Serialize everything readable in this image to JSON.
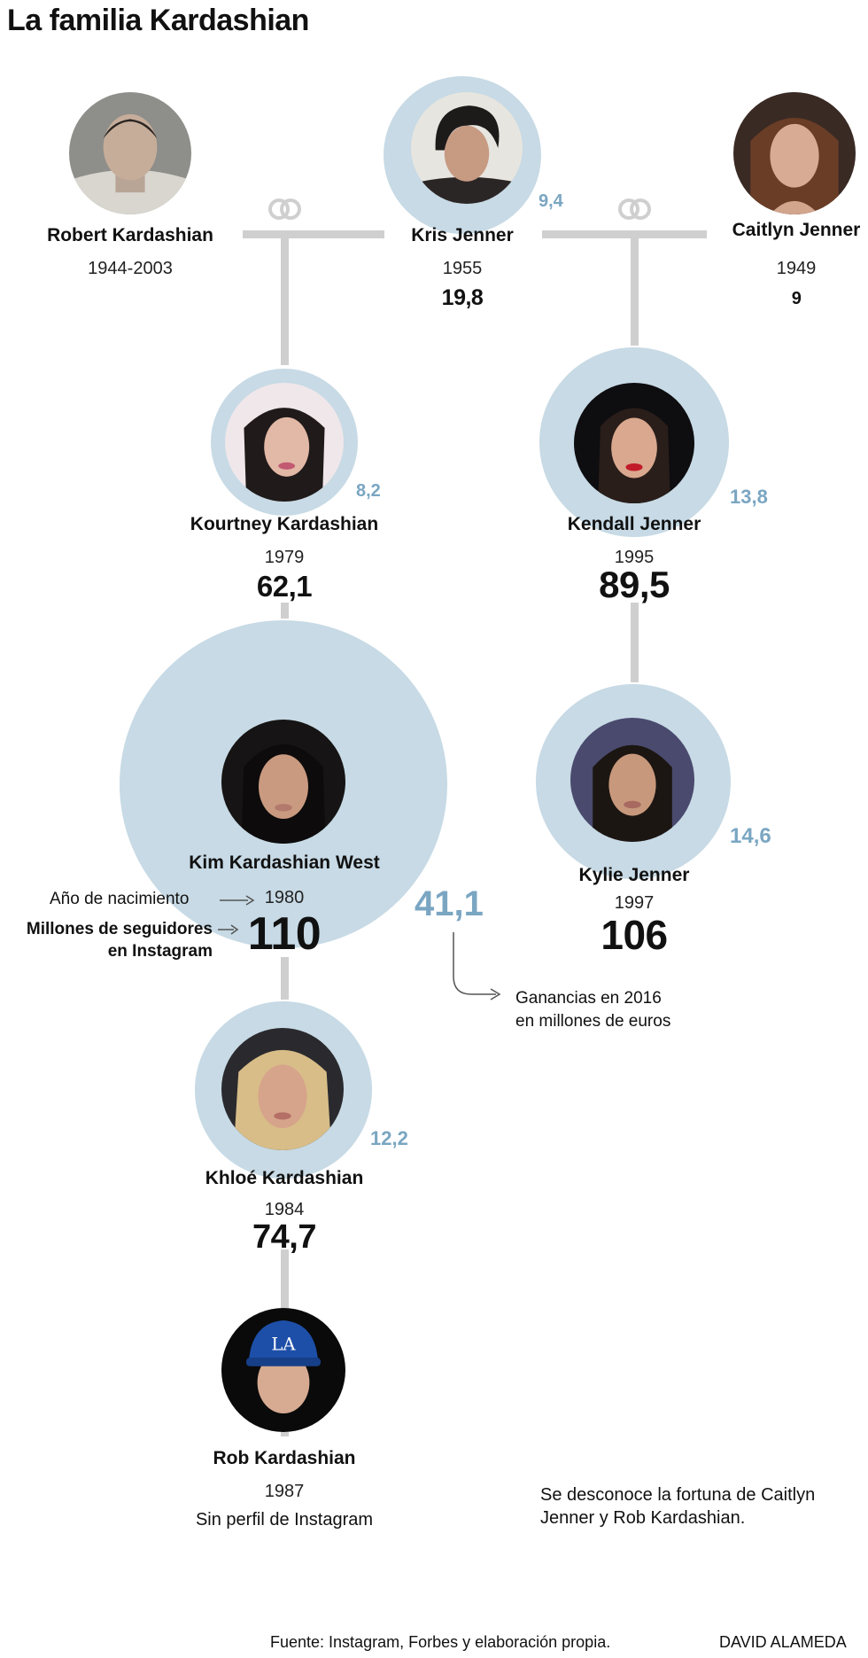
{
  "title": "La familia Kardashian",
  "members": [
    {
      "id": "robert",
      "name": "Robert Kardashian",
      "born": "1944-2003"
    },
    {
      "id": "kris",
      "name": "Kris Jenner",
      "born": "1955",
      "followers_millions": "19,8",
      "earnings_millions_eur": "9,4"
    },
    {
      "id": "caitlyn",
      "name": "Caitlyn Jenner",
      "born": "1949",
      "followers_millions": "9"
    },
    {
      "id": "kourtney",
      "name": "Kourtney Kardashian",
      "born": "1979",
      "followers_millions": "62,1",
      "earnings_millions_eur": "8,2"
    },
    {
      "id": "kendall",
      "name": "Kendall Jenner",
      "born": "1995",
      "followers_millions": "89,5",
      "earnings_millions_eur": "13,8"
    },
    {
      "id": "kim",
      "name": "Kim Kardashian West",
      "born": "1980",
      "followers_millions": "110",
      "earnings_millions_eur": "41,1"
    },
    {
      "id": "kylie",
      "name": "Kylie Jenner",
      "born": "1997",
      "followers_millions": "106",
      "earnings_millions_eur": "14,6"
    },
    {
      "id": "khloe",
      "name": "Khloé Kardashian",
      "born": "1984",
      "followers_millions": "74,7",
      "earnings_millions_eur": "12,2"
    },
    {
      "id": "rob",
      "name": "Rob Kardashian",
      "born": "1987",
      "note": "Sin perfil de Instagram"
    }
  ],
  "legend": {
    "birth_year": "Año de nacimiento",
    "followers_line1": "Millones de seguidores",
    "followers_line2": "en Instagram",
    "earnings_line1": "Ganancias en 2016",
    "earnings_line2": "en millones de euros"
  },
  "note": {
    "line1": "Se desconoce la fortuna de Caitlyn",
    "line2": "Jenner y Rob Kardashian."
  },
  "footer": {
    "source": "Fuente: Instagram, Forbes y elaboración propia.",
    "author": "DAVID ALAMEDA"
  },
  "colors": {
    "bubble": "#c7dae5",
    "earnings_text": "#7aa6c2",
    "connector": "#cfcfcf"
  }
}
